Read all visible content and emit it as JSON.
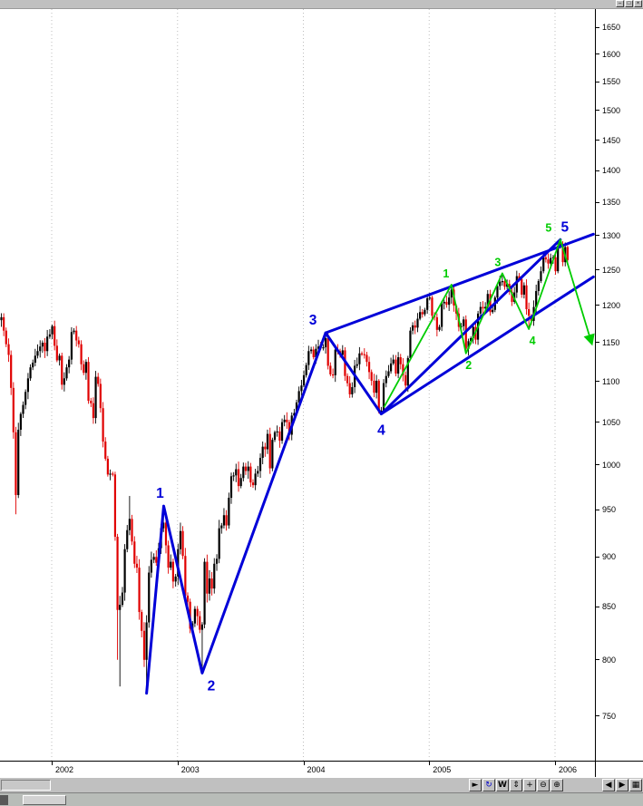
{
  "window": {
    "controls": [
      {
        "name": "minimize",
        "glyph": "–"
      },
      {
        "name": "restore",
        "glyph": "□"
      },
      {
        "name": "close",
        "glyph": "×"
      }
    ]
  },
  "chart_data": {
    "type": "candlestick",
    "interval": "weekly",
    "y_axis": {
      "scale": "log",
      "ticks": [
        1650,
        1600,
        1550,
        1500,
        1450,
        1400,
        1350,
        1300,
        1250,
        1200,
        1150,
        1100,
        1050,
        1000,
        950,
        900,
        850,
        800,
        750
      ]
    },
    "x_axis": {
      "labels": [
        "2002",
        "2003",
        "2004",
        "2005",
        "2006"
      ]
    },
    "candle_up_color": "#000000",
    "candle_down_color": "#e00000",
    "weekly_closes": [
      [
        2001.6,
        1184
      ],
      [
        2001.619,
        1166
      ],
      [
        2001.638,
        1148
      ],
      [
        2001.658,
        1134
      ],
      [
        2001.677,
        1092
      ],
      [
        2001.696,
        1038
      ],
      [
        2001.715,
        966,
        945,
        null
      ],
      [
        2001.735,
        1041
      ],
      [
        2001.754,
        1060
      ],
      [
        2001.773,
        1071
      ],
      [
        2001.792,
        1087
      ],
      [
        2001.812,
        1104
      ],
      [
        2001.831,
        1118
      ],
      [
        2001.85,
        1124
      ],
      [
        2001.869,
        1133
      ],
      [
        2001.888,
        1139
      ],
      [
        2001.908,
        1145
      ],
      [
        2001.927,
        1150
      ],
      [
        2001.946,
        1139
      ],
      [
        2001.965,
        1158
      ],
      [
        2001.985,
        1161
      ],
      [
        2002.004,
        1172
      ],
      [
        2002.023,
        1146
      ],
      [
        2002.042,
        1127
      ],
      [
        2002.062,
        1133
      ],
      [
        2002.081,
        1096
      ],
      [
        2002.1,
        1104
      ],
      [
        2002.119,
        1118
      ],
      [
        2002.138,
        1128
      ],
      [
        2002.158,
        1164
      ],
      [
        2002.177,
        1166
      ],
      [
        2002.196,
        1153
      ],
      [
        2002.215,
        1148
      ],
      [
        2002.235,
        1122
      ],
      [
        2002.254,
        1111
      ],
      [
        2002.273,
        1125
      ],
      [
        2002.292,
        1076
      ],
      [
        2002.312,
        1073
      ],
      [
        2002.331,
        1055
      ],
      [
        2002.35,
        1106
      ],
      [
        2002.369,
        1097
      ],
      [
        2002.388,
        1067
      ],
      [
        2002.408,
        1027
      ],
      [
        2002.427,
        1007
      ],
      [
        2002.446,
        989
      ],
      [
        2002.465,
        990
      ],
      [
        2002.485,
        989
      ],
      [
        2002.504,
        921
      ],
      [
        2002.523,
        847,
        800,
        null
      ],
      [
        2002.542,
        852,
        776,
        null
      ],
      [
        2002.562,
        864
      ],
      [
        2002.581,
        908
      ],
      [
        2002.6,
        928
      ],
      [
        2002.619,
        940,
        null,
        965
      ],
      [
        2002.638,
        916
      ],
      [
        2002.658,
        893
      ],
      [
        2002.677,
        889
      ],
      [
        2002.696,
        845
      ],
      [
        2002.715,
        827
      ],
      [
        2002.735,
        800
      ],
      [
        2002.754,
        835,
        769,
        null
      ],
      [
        2002.773,
        884
      ],
      [
        2002.792,
        897
      ],
      [
        2002.812,
        900
      ],
      [
        2002.831,
        894
      ],
      [
        2002.85,
        909
      ],
      [
        2002.869,
        930
      ],
      [
        2002.888,
        936,
        null,
        954
      ],
      [
        2002.908,
        912
      ],
      [
        2002.927,
        889
      ],
      [
        2002.946,
        895
      ],
      [
        2002.965,
        875
      ],
      [
        2002.985,
        880
      ],
      [
        2003.004,
        908
      ],
      [
        2003.023,
        927
      ],
      [
        2003.042,
        901
      ],
      [
        2003.062,
        861
      ],
      [
        2003.081,
        855
      ],
      [
        2003.1,
        829
      ],
      [
        2003.119,
        834
      ],
      [
        2003.138,
        848
      ],
      [
        2003.158,
        841
      ],
      [
        2003.177,
        828
      ],
      [
        2003.196,
        833,
        788,
        null
      ],
      [
        2003.215,
        895
      ],
      [
        2003.235,
        863
      ],
      [
        2003.254,
        878
      ],
      [
        2003.273,
        868
      ],
      [
        2003.292,
        893
      ],
      [
        2003.312,
        898
      ],
      [
        2003.331,
        930
      ],
      [
        2003.35,
        933
      ],
      [
        2003.369,
        944
      ],
      [
        2003.388,
        933
      ],
      [
        2003.408,
        963
      ],
      [
        2003.427,
        987
      ],
      [
        2003.446,
        988
      ],
      [
        2003.465,
        995
      ],
      [
        2003.485,
        976
      ],
      [
        2003.504,
        985
      ],
      [
        2003.523,
        998
      ],
      [
        2003.542,
        993
      ],
      [
        2003.562,
        998
      ],
      [
        2003.581,
        980
      ],
      [
        2003.6,
        977
      ],
      [
        2003.619,
        990
      ],
      [
        2003.638,
        993
      ],
      [
        2003.658,
        1008
      ],
      [
        2003.677,
        1021
      ],
      [
        2003.696,
        1018
      ],
      [
        2003.715,
        1036
      ],
      [
        2003.735,
        996
      ],
      [
        2003.754,
        1029
      ],
      [
        2003.773,
        1038
      ],
      [
        2003.792,
        1039
      ],
      [
        2003.812,
        1028
      ],
      [
        2003.831,
        1050
      ],
      [
        2003.85,
        1053
      ],
      [
        2003.869,
        1050
      ],
      [
        2003.888,
        1035
      ],
      [
        2003.908,
        1058
      ],
      [
        2003.927,
        1061
      ],
      [
        2003.946,
        1074
      ],
      [
        2003.965,
        1088
      ],
      [
        2003.985,
        1095
      ],
      [
        2004.004,
        1108
      ],
      [
        2004.023,
        1121
      ],
      [
        2004.042,
        1139
      ],
      [
        2004.062,
        1141
      ],
      [
        2004.081,
        1131
      ],
      [
        2004.1,
        1142
      ],
      [
        2004.119,
        1145
      ],
      [
        2004.138,
        1144
      ],
      [
        2004.158,
        1144
      ],
      [
        2004.177,
        1156,
        null,
        1163
      ],
      [
        2004.196,
        1120
      ],
      [
        2004.215,
        1109
      ],
      [
        2004.235,
        1108
      ],
      [
        2004.254,
        1141
      ],
      [
        2004.273,
        1139
      ],
      [
        2004.292,
        1134
      ],
      [
        2004.312,
        1140
      ],
      [
        2004.331,
        1107
      ],
      [
        2004.35,
        1098
      ],
      [
        2004.369,
        1084
      ],
      [
        2004.388,
        1093
      ],
      [
        2004.408,
        1120
      ],
      [
        2004.427,
        1122
      ],
      [
        2004.446,
        1136
      ],
      [
        2004.465,
        1135
      ],
      [
        2004.485,
        1134
      ],
      [
        2004.504,
        1125
      ],
      [
        2004.523,
        1112
      ],
      [
        2004.542,
        1101
      ],
      [
        2004.562,
        1086
      ],
      [
        2004.581,
        1101
      ],
      [
        2004.6,
        1063
      ],
      [
        2004.619,
        1064,
        1060,
        null
      ],
      [
        2004.638,
        1098
      ],
      [
        2004.658,
        1107
      ],
      [
        2004.677,
        1113
      ],
      [
        2004.696,
        1123
      ],
      [
        2004.715,
        1128
      ],
      [
        2004.735,
        1110
      ],
      [
        2004.754,
        1131
      ],
      [
        2004.773,
        1122
      ],
      [
        2004.792,
        1108
      ],
      [
        2004.812,
        1095
      ],
      [
        2004.831,
        1130
      ],
      [
        2004.85,
        1166
      ],
      [
        2004.869,
        1173
      ],
      [
        2004.888,
        1170
      ],
      [
        2004.908,
        1182
      ],
      [
        2004.927,
        1191
      ],
      [
        2004.946,
        1188
      ],
      [
        2004.965,
        1194
      ],
      [
        2004.985,
        1210
      ],
      [
        2005.004,
        1211
      ],
      [
        2005.023,
        1186
      ],
      [
        2005.042,
        1184
      ],
      [
        2005.062,
        1167
      ],
      [
        2005.081,
        1171
      ],
      [
        2005.1,
        1203
      ],
      [
        2005.119,
        1205
      ],
      [
        2005.138,
        1201
      ],
      [
        2005.158,
        1211
      ],
      [
        2005.177,
        1222,
        null,
        1229
      ],
      [
        2005.196,
        1200
      ],
      [
        2005.215,
        1189
      ],
      [
        2005.235,
        1171
      ],
      [
        2005.254,
        1172
      ],
      [
        2005.273,
        1181
      ],
      [
        2005.292,
        1142,
        1136,
        null
      ],
      [
        2005.312,
        1152
      ],
      [
        2005.331,
        1156
      ],
      [
        2005.35,
        1171
      ],
      [
        2005.369,
        1154
      ],
      [
        2005.388,
        1189
      ],
      [
        2005.408,
        1198
      ],
      [
        2005.427,
        1196
      ],
      [
        2005.446,
        1198
      ],
      [
        2005.465,
        1216
      ],
      [
        2005.485,
        1191
      ],
      [
        2005.504,
        1194
      ],
      [
        2005.523,
        1211
      ],
      [
        2005.542,
        1227
      ],
      [
        2005.562,
        1233
      ],
      [
        2005.581,
        1234,
        null,
        1245
      ],
      [
        2005.6,
        1226
      ],
      [
        2005.619,
        1230
      ],
      [
        2005.638,
        1219
      ],
      [
        2005.658,
        1205
      ],
      [
        2005.677,
        1218
      ],
      [
        2005.696,
        1241
      ],
      [
        2005.715,
        1237
      ],
      [
        2005.735,
        1215
      ],
      [
        2005.754,
        1228
      ],
      [
        2005.773,
        1195
      ],
      [
        2005.792,
        1186,
        1168,
        null
      ],
      [
        2005.812,
        1179
      ],
      [
        2005.831,
        1198
      ],
      [
        2005.85,
        1220
      ],
      [
        2005.869,
        1234
      ],
      [
        2005.888,
        1248
      ],
      [
        2005.908,
        1268
      ],
      [
        2005.927,
        1265
      ],
      [
        2005.946,
        1259
      ],
      [
        2005.965,
        1267
      ],
      [
        2005.985,
        1268
      ],
      [
        2006.004,
        1248
      ],
      [
        2006.023,
        1285
      ],
      [
        2006.042,
        1287,
        null,
        1294
      ],
      [
        2006.062,
        1261
      ],
      [
        2006.081,
        1283
      ],
      [
        2006.1,
        1264
      ]
    ],
    "elliott_primary": {
      "color": "#0000d8",
      "points": [
        {
          "t": 2002.754,
          "p": 770,
          "label": ""
        },
        {
          "t": 2002.89,
          "p": 954,
          "label": "1"
        },
        {
          "t": 2003.196,
          "p": 788,
          "label": "2"
        },
        {
          "t": 2004.177,
          "p": 1163,
          "label": "3"
        },
        {
          "t": 2004.619,
          "p": 1060,
          "label": "4"
        },
        {
          "t": 2006.042,
          "p": 1294,
          "label": "5"
        }
      ]
    },
    "elliott_sub": {
      "color": "#00cc00",
      "points": [
        {
          "t": 2004.64,
          "p": 1068,
          "label": ""
        },
        {
          "t": 2005.177,
          "p": 1229,
          "label": "1"
        },
        {
          "t": 2005.292,
          "p": 1136,
          "label": "2"
        },
        {
          "t": 2005.581,
          "p": 1245,
          "label": "3"
        },
        {
          "t": 2005.792,
          "p": 1168,
          "label": "4"
        },
        {
          "t": 2006.042,
          "p": 1294,
          "label": "5"
        }
      ],
      "projection_end": {
        "t": 2006.29,
        "p": 1150
      }
    },
    "trendlines": [
      {
        "name": "upper-wedge-line",
        "t1": 2004.177,
        "p1": 1163,
        "t2": 2006.305,
        "p2": 1302
      },
      {
        "name": "lower-wedge-line",
        "t1": 2004.619,
        "p1": 1060,
        "t2": 2006.305,
        "p2": 1240
      }
    ]
  },
  "toolbar": {
    "buttons": [
      {
        "name": "play",
        "glyph": "►",
        "color": "#000000"
      },
      {
        "name": "refresh",
        "glyph": "↻",
        "color": "#0000cc"
      },
      {
        "name": "weekly-interval",
        "glyph": "W",
        "color": "#000000"
      },
      {
        "name": "vertical-fit",
        "glyph": "⇕",
        "color": "#000000"
      },
      {
        "name": "crosshair",
        "glyph": "+",
        "color": "#000000"
      },
      {
        "name": "zoom-out",
        "glyph": "⊖",
        "color": "#000000"
      },
      {
        "name": "zoom-in",
        "glyph": "⊕",
        "color": "#000000"
      }
    ],
    "nav": [
      {
        "name": "scroll-left",
        "glyph": "◀",
        "color": "#000000"
      },
      {
        "name": "scroll-right",
        "glyph": "▶",
        "color": "#000000"
      },
      {
        "name": "grid-view",
        "glyph": "▦",
        "color": "#000000"
      }
    ]
  }
}
